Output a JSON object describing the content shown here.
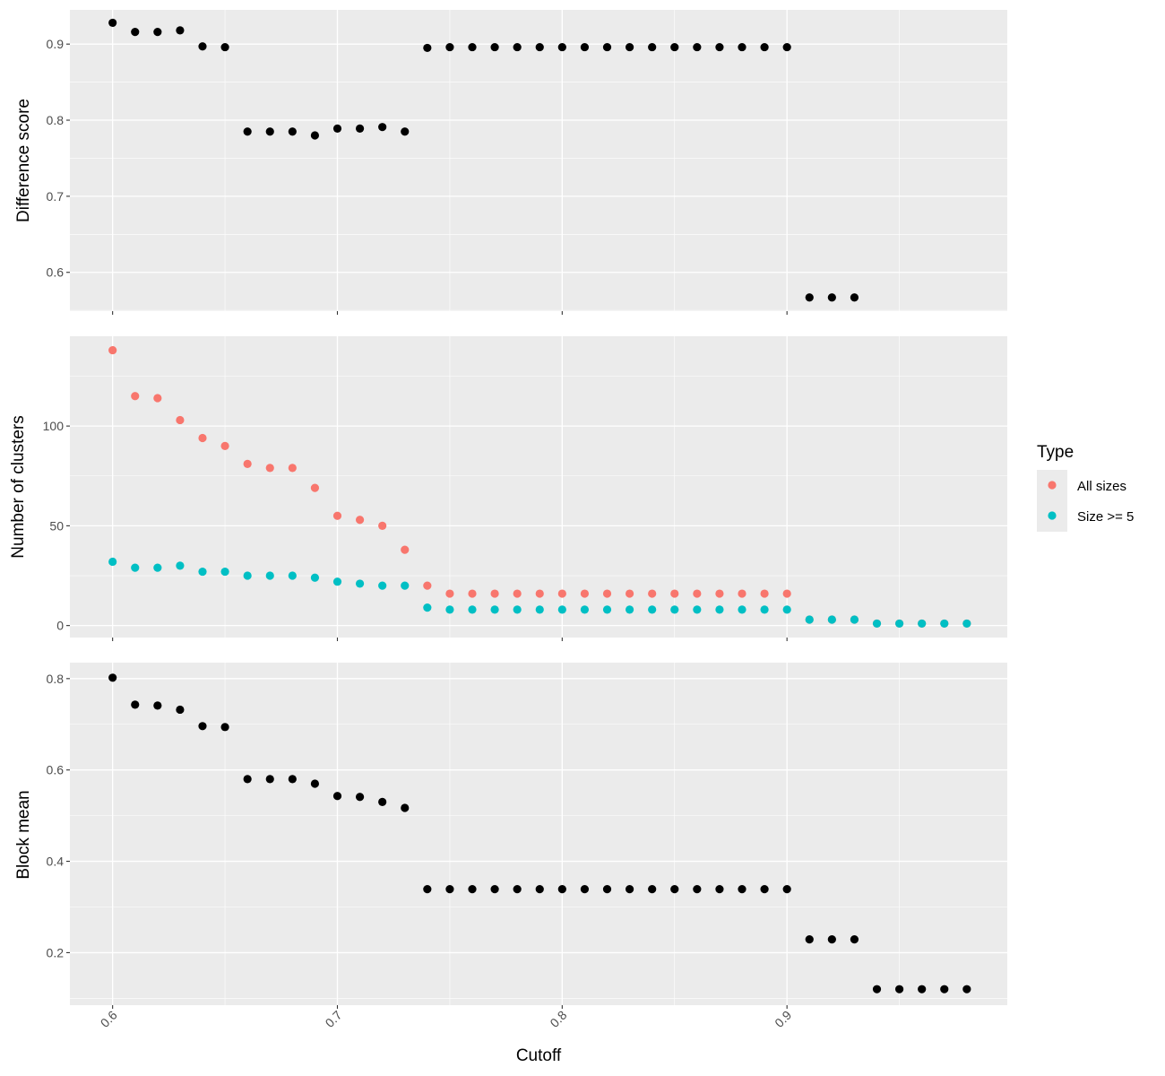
{
  "chart_data": {
    "type": "scatter",
    "x": [
      0.6,
      0.61,
      0.62,
      0.63,
      0.64,
      0.65,
      0.66,
      0.67,
      0.68,
      0.69,
      0.7,
      0.71,
      0.72,
      0.73,
      0.74,
      0.75,
      0.76,
      0.77,
      0.78,
      0.79,
      0.8,
      0.81,
      0.82,
      0.83,
      0.84,
      0.85,
      0.86,
      0.87,
      0.88,
      0.89,
      0.9,
      0.91,
      0.92,
      0.93,
      0.94,
      0.95,
      0.96,
      0.97,
      0.98
    ],
    "xlabel": "Cutoff",
    "xlim": [
      0.581,
      0.998
    ],
    "x_ticks": [
      "0.6",
      "0.7",
      "0.8",
      "0.9"
    ],
    "grid": true,
    "legend": {
      "title": "Type",
      "placement": "right",
      "entries": [
        {
          "label": "All sizes",
          "color": "#F8766D"
        },
        {
          "label": "Size >= 5",
          "color": "#00BFC4"
        }
      ]
    },
    "panels": [
      {
        "id": "difference",
        "ylabel": "Difference score",
        "ylim": [
          0.549,
          0.945
        ],
        "y_ticks": [
          "0.6",
          "0.7",
          "0.8",
          "0.9"
        ],
        "series": [
          {
            "color": "#000000",
            "values": [
              0.928,
              0.916,
              0.916,
              0.918,
              0.897,
              0.896,
              0.785,
              0.785,
              0.785,
              0.78,
              0.789,
              0.789,
              0.791,
              0.785,
              0.895,
              0.896,
              0.896,
              0.896,
              0.896,
              0.896,
              0.896,
              0.896,
              0.896,
              0.896,
              0.896,
              0.896,
              0.896,
              0.896,
              0.896,
              0.896,
              0.896,
              0.567,
              0.567,
              0.567,
              null,
              null,
              null,
              null,
              null
            ]
          }
        ]
      },
      {
        "id": "clusters",
        "ylabel": "Number of clusters",
        "ylim": [
          -6,
          145
        ],
        "y_ticks": [
          "0",
          "50",
          "100"
        ],
        "series": [
          {
            "name": "All sizes",
            "color": "#F8766D",
            "values": [
              138,
              115,
              114,
              103,
              94,
              90,
              81,
              79,
              79,
              69,
              55,
              53,
              50,
              38,
              20,
              16,
              16,
              16,
              16,
              16,
              16,
              16,
              16,
              16,
              16,
              16,
              16,
              16,
              16,
              16,
              16,
              3,
              3,
              3,
              1,
              1,
              1,
              1,
              1
            ]
          },
          {
            "name": "Size >= 5",
            "color": "#00BFC4",
            "values": [
              32,
              29,
              29,
              30,
              27,
              27,
              25,
              25,
              25,
              24,
              22,
              21,
              20,
              20,
              9,
              8,
              8,
              8,
              8,
              8,
              8,
              8,
              8,
              8,
              8,
              8,
              8,
              8,
              8,
              8,
              8,
              3,
              3,
              3,
              1,
              1,
              1,
              1,
              1
            ]
          }
        ]
      },
      {
        "id": "blockmean",
        "ylabel": "Block mean",
        "ylim": [
          0.085,
          0.835
        ],
        "y_ticks": [
          "0.2",
          "0.4",
          "0.6",
          "0.8"
        ],
        "series": [
          {
            "color": "#000000",
            "values": [
              0.802,
              0.743,
              0.741,
              0.732,
              0.696,
              0.694,
              0.58,
              0.58,
              0.58,
              0.57,
              0.543,
              0.541,
              0.53,
              0.517,
              0.339,
              0.339,
              0.339,
              0.339,
              0.339,
              0.339,
              0.339,
              0.339,
              0.339,
              0.339,
              0.339,
              0.339,
              0.339,
              0.339,
              0.339,
              0.339,
              0.339,
              0.229,
              0.229,
              0.229,
              0.12,
              0.12,
              0.12,
              0.12,
              0.12
            ]
          }
        ]
      }
    ]
  }
}
